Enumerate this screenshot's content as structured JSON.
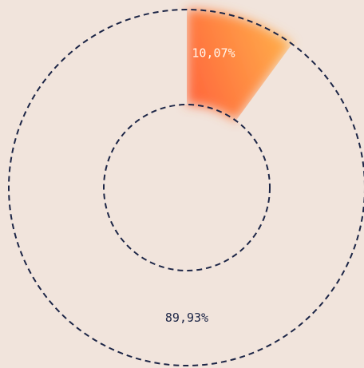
{
  "chart_data": {
    "type": "pie",
    "variant": "donut",
    "slices": [
      {
        "label": "10,07%",
        "value": 10.07,
        "color": "#ff7a3a",
        "highlight": true
      },
      {
        "label": "89,93%",
        "value": 89.93,
        "color": "#f1e4dc",
        "highlight": false
      }
    ],
    "legend": "none",
    "outline_style": "dashed",
    "colors": {
      "background": "#f1e4dc",
      "outline": "#1c2546",
      "highlight_gradient_start": "#ff6a3d",
      "highlight_gradient_end": "#ffb24a",
      "highlight_label": "#fff6ec",
      "plain_label": "#1c2546"
    }
  }
}
